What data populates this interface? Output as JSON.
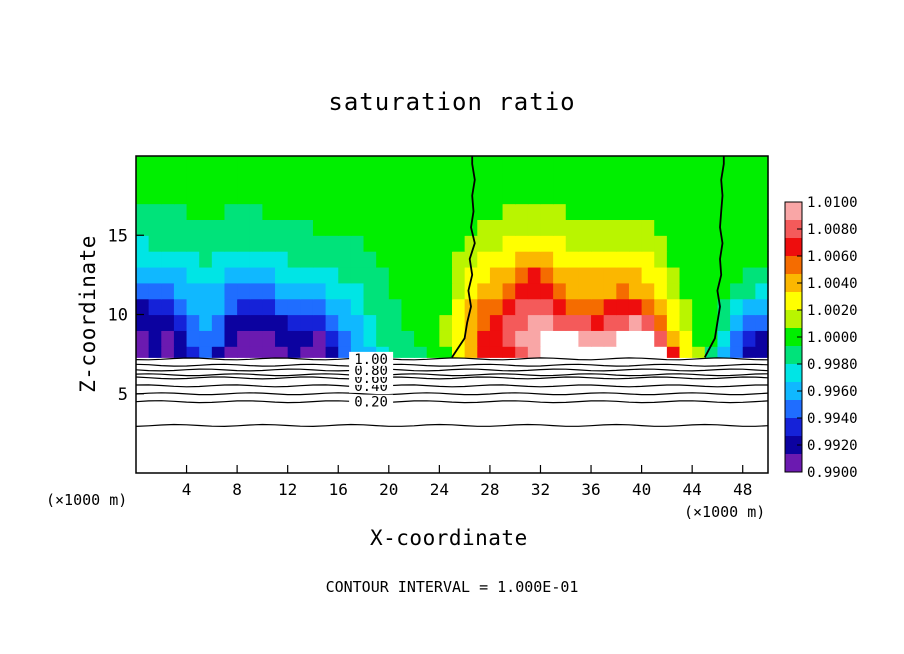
{
  "chart_data": {
    "type": "heatmap",
    "title": "saturation ratio",
    "xlabel": "X-coordinate",
    "ylabel": "Z-coordinate",
    "x_unit_label": "(×1000 m)",
    "x_unit_label_right": "(×1000 m)",
    "xlim": [
      0,
      50
    ],
    "ylim": [
      0,
      20
    ],
    "x_ticks": [
      4,
      8,
      12,
      16,
      20,
      24,
      28,
      32,
      36,
      40,
      44,
      48
    ],
    "y_ticks": [
      5,
      10,
      15
    ],
    "colorbar": {
      "min": 0.99,
      "max": 1.01,
      "labels": [
        "1.0100",
        "1.0080",
        "1.0060",
        "1.0040",
        "1.0020",
        "1.0000",
        "0.9980",
        "0.9960",
        "0.9940",
        "0.9920",
        "0.9900"
      ],
      "colors": [
        "#f9a6a6",
        "#f45a5a",
        "#ee0d0d",
        "#f56c00",
        "#fbb700",
        "#ffff00",
        "#b9f500",
        "#00ef00",
        "#00e37a",
        "#00e5e5",
        "#10b8ff",
        "#1f6dff",
        "#1522d8",
        "#0c02a0",
        "#6b1ab0"
      ]
    },
    "cloud_base_z": 7.3,
    "contours": [
      {
        "label": "0.20",
        "z": 4.5
      },
      {
        "label": "0.40",
        "z": 5.5
      },
      {
        "label": "0.60",
        "z": 6.0
      },
      {
        "label": "0.80",
        "z": 6.5
      },
      {
        "label": "1.00",
        "z": 7.2
      }
    ],
    "extra_contour_z": [
      3.0,
      5.0,
      6.2,
      6.8
    ],
    "field": {
      "nx": 50,
      "nz": 13,
      "z0": 7.5,
      "dz": 1.0,
      "values_x1e4_minus_1": [
        [
          -95,
          -85,
          -92,
          -80,
          -70,
          -60,
          -75,
          -90,
          -95,
          -95,
          -92,
          -88,
          -85,
          -90,
          -92,
          -80,
          -60,
          -45,
          -35,
          -25,
          -15,
          -10,
          -8,
          -5,
          5,
          30,
          45,
          60,
          65,
          70,
          80,
          95,
          100,
          100,
          100,
          100,
          100,
          100,
          100,
          100,
          100,
          100,
          60,
          30,
          10,
          -10,
          -40,
          -60,
          -80,
          -85
        ],
        [
          -90,
          -80,
          -88,
          -75,
          -60,
          -55,
          -60,
          -85,
          -90,
          -92,
          -88,
          -84,
          -80,
          -85,
          -88,
          -70,
          -50,
          -40,
          -30,
          -20,
          -12,
          -8,
          -6,
          -2,
          8,
          30,
          45,
          60,
          70,
          80,
          90,
          95,
          100,
          100,
          100,
          95,
          90,
          95,
          100,
          100,
          100,
          80,
          45,
          20,
          5,
          -5,
          -30,
          -50,
          -70,
          -75
        ],
        [
          -85,
          -75,
          -80,
          -65,
          -50,
          -45,
          -50,
          -75,
          -80,
          -85,
          -80,
          -75,
          -70,
          -72,
          -70,
          -55,
          -45,
          -35,
          -25,
          -15,
          -10,
          -6,
          -4,
          0,
          8,
          25,
          40,
          55,
          65,
          75,
          85,
          90,
          90,
          85,
          80,
          75,
          70,
          75,
          85,
          90,
          80,
          55,
          30,
          12,
          2,
          -3,
          -20,
          -40,
          -55,
          -60
        ],
        [
          -75,
          -70,
          -70,
          -55,
          -45,
          -40,
          -45,
          -60,
          -65,
          -70,
          -65,
          -60,
          -55,
          -55,
          -50,
          -42,
          -35,
          -28,
          -20,
          -12,
          -8,
          -5,
          -3,
          0,
          6,
          20,
          35,
          48,
          55,
          65,
          75,
          80,
          75,
          65,
          58,
          55,
          55,
          60,
          65,
          65,
          55,
          40,
          22,
          10,
          2,
          -2,
          -12,
          -25,
          -35,
          -40
        ],
        [
          -60,
          -55,
          -55,
          -45,
          -38,
          -35,
          -38,
          -48,
          -50,
          -52,
          -48,
          -45,
          -42,
          -40,
          -38,
          -32,
          -28,
          -22,
          -16,
          -10,
          -6,
          -4,
          -2,
          0,
          5,
          15,
          28,
          38,
          45,
          55,
          65,
          70,
          62,
          52,
          45,
          42,
          42,
          45,
          48,
          45,
          38,
          28,
          15,
          6,
          1,
          -1,
          -6,
          -12,
          -18,
          -22
        ],
        [
          -45,
          -42,
          -40,
          -35,
          -30,
          -28,
          -30,
          -35,
          -38,
          -38,
          -36,
          -33,
          -30,
          -28,
          -26,
          -22,
          -20,
          -16,
          -12,
          -8,
          -5,
          -3,
          -2,
          0,
          4,
          12,
          22,
          30,
          36,
          45,
          55,
          60,
          55,
          45,
          38,
          35,
          35,
          38,
          40,
          38,
          30,
          20,
          10,
          4,
          0,
          -1,
          -3,
          -6,
          -9,
          -12
        ],
        [
          -32,
          -30,
          -28,
          -25,
          -22,
          -20,
          -22,
          -25,
          -26,
          -26,
          -25,
          -23,
          -20,
          -18,
          -16,
          -14,
          -12,
          -10,
          -8,
          -6,
          -4,
          -2,
          -1,
          0,
          3,
          8,
          15,
          22,
          26,
          32,
          40,
          45,
          40,
          32,
          28,
          26,
          26,
          28,
          30,
          28,
          22,
          14,
          6,
          2,
          0,
          0,
          -2,
          -3,
          -5,
          -6
        ],
        [
          -22,
          -20,
          -18,
          -16,
          -14,
          -13,
          -14,
          -16,
          -17,
          -17,
          -16,
          -14,
          -12,
          -11,
          -10,
          -9,
          -8,
          -7,
          -5,
          -4,
          -3,
          -2,
          -1,
          0,
          2,
          5,
          10,
          14,
          18,
          22,
          26,
          28,
          25,
          20,
          17,
          15,
          15,
          16,
          17,
          16,
          12,
          8,
          3,
          1,
          0,
          0,
          -1,
          -2,
          -3,
          -3
        ],
        [
          -14,
          -13,
          -12,
          -11,
          -10,
          -9,
          -9,
          -10,
          -11,
          -11,
          -10,
          -9,
          -8,
          -7,
          -6,
          -6,
          -5,
          -4,
          -3,
          -2,
          -2,
          -1,
          -1,
          0,
          1,
          3,
          6,
          9,
          11,
          14,
          16,
          17,
          15,
          12,
          10,
          9,
          9,
          10,
          10,
          9,
          7,
          4,
          2,
          0,
          0,
          0,
          0,
          -1,
          -1,
          -2
        ],
        [
          -9,
          -8,
          -8,
          -7,
          -6,
          -6,
          -6,
          -7,
          -7,
          -7,
          -6,
          -6,
          -5,
          -4,
          -4,
          -3,
          -3,
          -2,
          -2,
          -1,
          -1,
          -1,
          0,
          0,
          1,
          2,
          4,
          5,
          6,
          8,
          9,
          10,
          9,
          7,
          6,
          5,
          5,
          6,
          6,
          5,
          4,
          2,
          1,
          0,
          0,
          0,
          0,
          0,
          -1,
          -1
        ],
        [
          -5,
          -5,
          -5,
          -4,
          -4,
          -4,
          -4,
          -4,
          -4,
          -4,
          -4,
          -3,
          -3,
          -3,
          -2,
          -2,
          -2,
          -1,
          -1,
          -1,
          0,
          0,
          0,
          0,
          1,
          1,
          2,
          3,
          3,
          4,
          5,
          5,
          5,
          4,
          3,
          3,
          3,
          3,
          3,
          3,
          2,
          1,
          0,
          0,
          0,
          0,
          0,
          0,
          0,
          0
        ],
        [
          -3,
          -3,
          -3,
          -3,
          -2,
          -2,
          -2,
          -2,
          -2,
          -2,
          -2,
          -2,
          -2,
          -1,
          -1,
          -1,
          -1,
          -1,
          0,
          0,
          0,
          0,
          0,
          0,
          0,
          1,
          1,
          1,
          2,
          2,
          2,
          3,
          2,
          2,
          2,
          1,
          1,
          1,
          1,
          1,
          1,
          0,
          0,
          0,
          0,
          0,
          0,
          0,
          0,
          0
        ],
        [
          -2,
          -2,
          -2,
          -1,
          -1,
          -1,
          -1,
          -1,
          -1,
          -1,
          -1,
          -1,
          -1,
          -1,
          0,
          0,
          0,
          0,
          0,
          0,
          0,
          0,
          0,
          0,
          0,
          0,
          1,
          1,
          1,
          1,
          1,
          1,
          1,
          1,
          1,
          1,
          0,
          0,
          0,
          0,
          0,
          0,
          0,
          0,
          0,
          0,
          0,
          0,
          0,
          0
        ]
      ]
    },
    "contour_line_1_x": [
      25,
      26,
      26.2,
      26.5,
      26.3,
      26.6,
      26.4,
      26.8,
      26.5,
      26.7,
      26.6,
      26.8,
      26.6
    ],
    "contour_line_2_x": [
      45,
      45.8,
      46,
      46.2,
      46.0,
      46.3,
      46.2,
      46.4,
      46.2,
      46.3,
      46.4,
      46.3,
      46.5
    ],
    "interval_text": "CONTOUR INTERVAL = 1.000E-01"
  }
}
